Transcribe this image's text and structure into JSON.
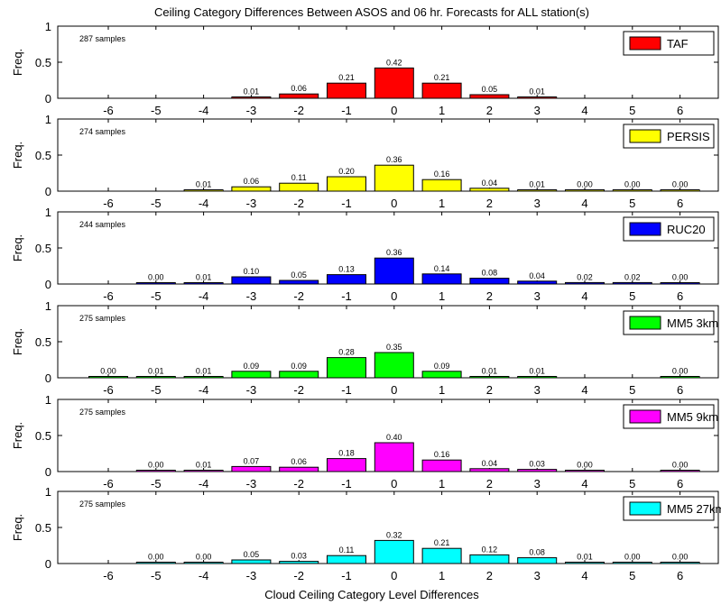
{
  "title": "Ceiling Category Differences Between ASOS and 06 hr. Forecasts for ALL station(s)",
  "xlabel": "Cloud Ceiling Category Level Differences",
  "chart_data": [
    {
      "type": "bar",
      "ylabel": "Freq.",
      "ylim": [
        0,
        1
      ],
      "yticks": [
        "0",
        "0.5",
        "1"
      ],
      "categories": [
        "-6",
        "-5",
        "-4",
        "-3",
        "-2",
        "-1",
        "0",
        "1",
        "2",
        "3",
        "4",
        "5",
        "6"
      ],
      "series": [
        {
          "name": "TAF",
          "color": "#ff0000",
          "values": [
            null,
            null,
            null,
            0.01,
            0.06,
            0.21,
            0.42,
            0.21,
            0.05,
            0.01,
            null,
            null,
            null
          ],
          "labels": [
            "",
            "",
            "",
            "0.01",
            "0.06",
            "0.21",
            "0.42",
            "0.21",
            "0.05",
            "0.01",
            "",
            "",
            ""
          ]
        }
      ],
      "annotation": "287 samples",
      "legend": "top-right"
    },
    {
      "type": "bar",
      "ylabel": "Freq.",
      "ylim": [
        0,
        1
      ],
      "yticks": [
        "0",
        "0.5",
        "1"
      ],
      "categories": [
        "-6",
        "-5",
        "-4",
        "-3",
        "-2",
        "-1",
        "0",
        "1",
        "2",
        "3",
        "4",
        "5",
        "6"
      ],
      "series": [
        {
          "name": "PERSIS",
          "color": "#ffff00",
          "values": [
            null,
            null,
            0.01,
            0.06,
            0.11,
            0.2,
            0.36,
            0.16,
            0.04,
            0.01,
            0.0,
            0.0,
            0.0
          ],
          "labels": [
            "",
            "",
            "0.01",
            "0.06",
            "0.11",
            "0.20",
            "0.36",
            "0.16",
            "0.04",
            "0.01",
            "0.00",
            "0.00",
            "0.00"
          ]
        }
      ],
      "annotation": "274 samples",
      "legend": "top-right"
    },
    {
      "type": "bar",
      "ylabel": "Freq.",
      "ylim": [
        0,
        1
      ],
      "yticks": [
        "0",
        "0.5",
        "1"
      ],
      "categories": [
        "-6",
        "-5",
        "-4",
        "-3",
        "-2",
        "-1",
        "0",
        "1",
        "2",
        "3",
        "4",
        "5",
        "6"
      ],
      "series": [
        {
          "name": "RUC20",
          "color": "#0000ff",
          "values": [
            null,
            0.0,
            0.01,
            0.1,
            0.05,
            0.13,
            0.36,
            0.14,
            0.08,
            0.04,
            0.02,
            0.02,
            0.0
          ],
          "labels": [
            "",
            "0.00",
            "0.01",
            "0.10",
            "0.05",
            "0.13",
            "0.36",
            "0.14",
            "0.08",
            "0.04",
            "0.02",
            "0.02",
            "0.00"
          ]
        }
      ],
      "annotation": "244 samples",
      "legend": "top-right"
    },
    {
      "type": "bar",
      "ylabel": "Freq.",
      "ylim": [
        0,
        1
      ],
      "yticks": [
        "0",
        "0.5",
        "1"
      ],
      "categories": [
        "-6",
        "-5",
        "-4",
        "-3",
        "-2",
        "-1",
        "0",
        "1",
        "2",
        "3",
        "4",
        "5",
        "6"
      ],
      "series": [
        {
          "name": "MM5 3km",
          "color": "#00ff00",
          "values": [
            0.0,
            0.01,
            0.01,
            0.09,
            0.09,
            0.28,
            0.35,
            0.09,
            0.01,
            0.01,
            null,
            null,
            0.0
          ],
          "labels": [
            "0.00",
            "0.01",
            "0.01",
            "0.09",
            "0.09",
            "0.28",
            "0.35",
            "0.09",
            "0.01",
            "0.01",
            "",
            "",
            "0.00"
          ]
        }
      ],
      "annotation": "275 samples",
      "legend": "top-right"
    },
    {
      "type": "bar",
      "ylabel": "Freq.",
      "ylim": [
        0,
        1
      ],
      "yticks": [
        "0",
        "0.5",
        "1"
      ],
      "categories": [
        "-6",
        "-5",
        "-4",
        "-3",
        "-2",
        "-1",
        "0",
        "1",
        "2",
        "3",
        "4",
        "5",
        "6"
      ],
      "series": [
        {
          "name": "MM5 9km",
          "color": "#ff00ff",
          "values": [
            null,
            0.0,
            0.01,
            0.07,
            0.06,
            0.18,
            0.4,
            0.16,
            0.04,
            0.03,
            0.0,
            null,
            0.0
          ],
          "labels": [
            "",
            "0.00",
            "0.01",
            "0.07",
            "0.06",
            "0.18",
            "0.40",
            "0.16",
            "0.04",
            "0.03",
            "0.00",
            "",
            "0.00"
          ]
        }
      ],
      "annotation": "275 samples",
      "legend": "top-right"
    },
    {
      "type": "bar",
      "ylabel": "Freq.",
      "ylim": [
        0,
        1
      ],
      "yticks": [
        "0",
        "0.5",
        "1"
      ],
      "categories": [
        "-6",
        "-5",
        "-4",
        "-3",
        "-2",
        "-1",
        "0",
        "1",
        "2",
        "3",
        "4",
        "5",
        "6"
      ],
      "series": [
        {
          "name": "MM5 27km",
          "color": "#00ffff",
          "values": [
            null,
            0.0,
            0.0,
            0.05,
            0.03,
            0.11,
            0.32,
            0.21,
            0.12,
            0.08,
            0.01,
            0.0,
            0.0
          ],
          "labels": [
            "",
            "0.00",
            "0.00",
            "0.05",
            "0.03",
            "0.11",
            "0.32",
            "0.21",
            "0.12",
            "0.08",
            "0.01",
            "0.00",
            "0.00"
          ]
        }
      ],
      "annotation": "275 samples",
      "legend": "top-right"
    }
  ]
}
